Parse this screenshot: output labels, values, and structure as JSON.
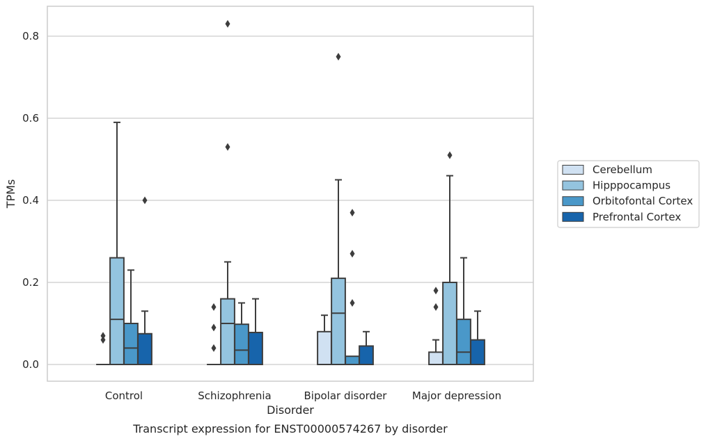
{
  "chart_data": {
    "type": "box",
    "title": "",
    "caption": "Transcript expression for ENST00000574267 by disorder",
    "xlabel": "Disorder",
    "ylabel": "TPMs",
    "ylim": [
      -0.04,
      0.872
    ],
    "yticks": [
      0.0,
      0.2,
      0.4,
      0.6,
      0.8
    ],
    "ytick_labels": [
      "0.0",
      "0.2",
      "0.4",
      "0.6",
      "0.8"
    ],
    "grid": "horizontal",
    "legend_position": "right",
    "categories": [
      "Control",
      "Schizophrenia",
      "Bipolar disorder",
      "Major depression"
    ],
    "series": [
      {
        "name": "Cerebellum",
        "color": "#d0e1f2",
        "boxes": [
          {
            "q1": 0.0,
            "median": 0.0,
            "q3": 0.0,
            "whisker_low": 0.0,
            "whisker_high": 0.0,
            "outliers": [
              0.07,
              0.06
            ]
          },
          {
            "q1": 0.0,
            "median": 0.0,
            "q3": 0.0,
            "whisker_low": 0.0,
            "whisker_high": 0.0,
            "outliers": [
              0.14,
              0.09,
              0.04
            ]
          },
          {
            "q1": 0.0,
            "median": 0.0,
            "q3": 0.08,
            "whisker_low": 0.0,
            "whisker_high": 0.12,
            "outliers": []
          },
          {
            "q1": 0.0,
            "median": 0.0,
            "q3": 0.03,
            "whisker_low": 0.0,
            "whisker_high": 0.06,
            "outliers": [
              0.18,
              0.14
            ]
          }
        ]
      },
      {
        "name": "Hipppocampus",
        "color": "#94c4df",
        "boxes": [
          {
            "q1": 0.0,
            "median": 0.11,
            "q3": 0.26,
            "whisker_low": 0.0,
            "whisker_high": 0.59,
            "outliers": []
          },
          {
            "q1": 0.0,
            "median": 0.1,
            "q3": 0.16,
            "whisker_low": 0.0,
            "whisker_high": 0.25,
            "outliers": [
              0.53,
              0.83
            ]
          },
          {
            "q1": 0.0,
            "median": 0.125,
            "q3": 0.21,
            "whisker_low": 0.0,
            "whisker_high": 0.45,
            "outliers": [
              0.75
            ]
          },
          {
            "q1": 0.0,
            "median": 0.0,
            "q3": 0.2,
            "whisker_low": 0.0,
            "whisker_high": 0.46,
            "outliers": [
              0.51
            ]
          }
        ]
      },
      {
        "name": "Orbitofontal Cortex",
        "color": "#4a98c9",
        "boxes": [
          {
            "q1": 0.0,
            "median": 0.04,
            "q3": 0.1,
            "whisker_low": 0.0,
            "whisker_high": 0.23,
            "outliers": []
          },
          {
            "q1": 0.0,
            "median": 0.035,
            "q3": 0.098,
            "whisker_low": 0.0,
            "whisker_high": 0.15,
            "outliers": []
          },
          {
            "q1": 0.0,
            "median": 0.0,
            "q3": 0.02,
            "whisker_low": 0.0,
            "whisker_high": 0.02,
            "outliers": [
              0.15,
              0.27,
              0.37
            ]
          },
          {
            "q1": 0.0,
            "median": 0.03,
            "q3": 0.11,
            "whisker_low": 0.0,
            "whisker_high": 0.26,
            "outliers": []
          }
        ]
      },
      {
        "name": "Prefrontal Cortex",
        "color": "#1764ab",
        "boxes": [
          {
            "q1": 0.0,
            "median": 0.0,
            "q3": 0.075,
            "whisker_low": 0.0,
            "whisker_high": 0.13,
            "outliers": [
              0.4
            ]
          },
          {
            "q1": 0.0,
            "median": 0.0,
            "q3": 0.078,
            "whisker_low": 0.0,
            "whisker_high": 0.16,
            "outliers": []
          },
          {
            "q1": 0.0,
            "median": 0.0,
            "q3": 0.045,
            "whisker_low": 0.0,
            "whisker_high": 0.08,
            "outliers": []
          },
          {
            "q1": 0.0,
            "median": 0.0,
            "q3": 0.06,
            "whisker_low": 0.0,
            "whisker_high": 0.13,
            "outliers": []
          }
        ]
      }
    ]
  }
}
